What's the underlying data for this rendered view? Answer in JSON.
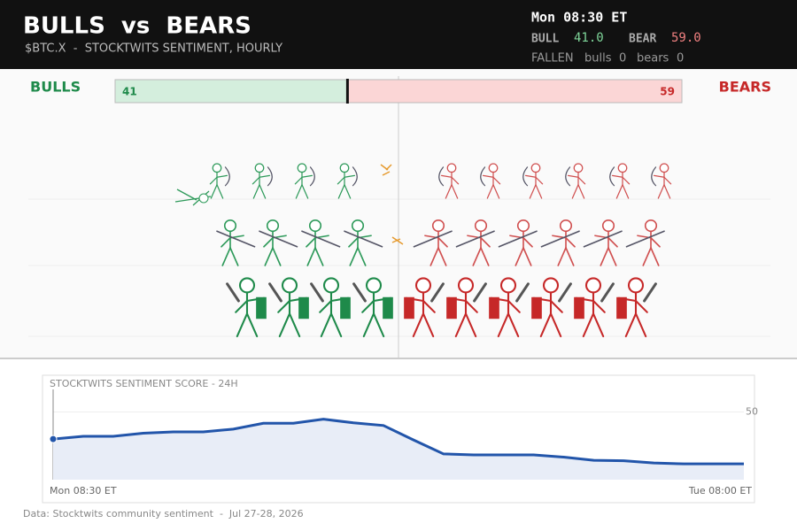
{
  "header": {
    "title": "BULLS  vs  BEARS",
    "subtitle": "$BTC.X  -  STOCKTWITS SENTIMENT, HOURLY",
    "time": "Mon 08:30 ET",
    "bull_label": "BULL",
    "bull_value": "41.0",
    "bear_label": "BEAR",
    "bear_value": "59.0",
    "fallen_label": "FALLEN",
    "fallen_bulls_label": "bulls",
    "fallen_bulls": 0,
    "fallen_bears_label": "bears",
    "fallen_bears": 0
  },
  "meter": {
    "bulls_label": "BULLS",
    "bears_label": "BEARS",
    "bulls": 41,
    "bears": 59,
    "bulls_color": "#d4eedd",
    "bears_color": "#fbd6d6"
  },
  "chart_data": {
    "type": "line",
    "title": "STOCKTWITS SENTIMENT SCORE - 24H",
    "color": "#2255aa",
    "categories": [
      "Mon 08:30 ET",
      null,
      null,
      null,
      null,
      null,
      null,
      null,
      null,
      null,
      null,
      null,
      null,
      null,
      null,
      null,
      null,
      null,
      null,
      null,
      null,
      null,
      null,
      "Tue 08:00 ET"
    ],
    "values": [
      44.0,
      44.6,
      44.6,
      45.3,
      45.6,
      45.6,
      46.2,
      47.5,
      47.5,
      48.4,
      47.6,
      47.0,
      43.8,
      40.7,
      40.5,
      40.5,
      40.5,
      40.0,
      39.3,
      39.2,
      38.7,
      38.5,
      38.5,
      38.5
    ],
    "ylim": [
      35,
      55
    ],
    "yticks": [
      50
    ]
  },
  "footer": "Data: Stocktwits community sentiment  -  Jul 27-28, 2026"
}
